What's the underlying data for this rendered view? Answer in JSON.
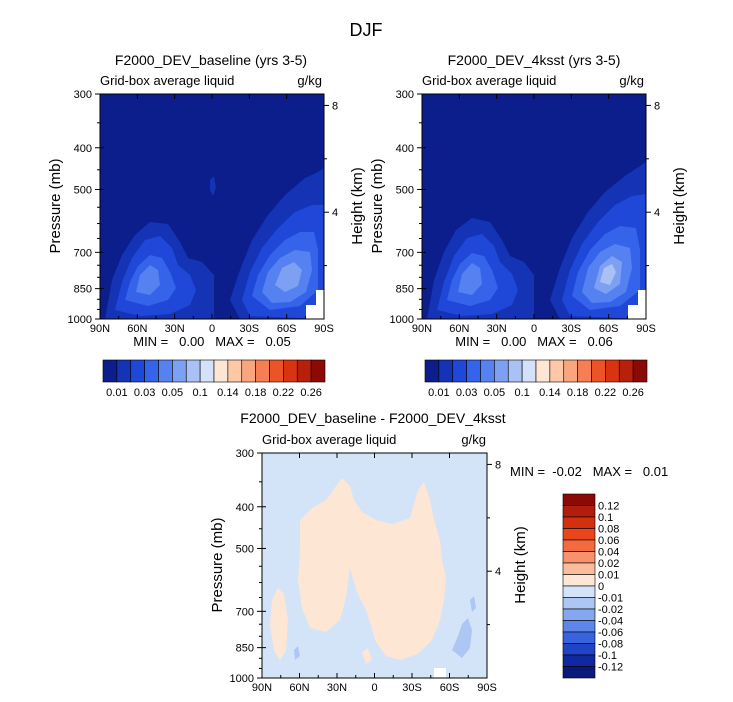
{
  "figure_title": "DJF",
  "chart_data": [
    {
      "type": "heatmap",
      "title": "F2000_DEV_baseline (yrs 3-5)",
      "subtitle_left": "Grid-box average liquid",
      "subtitle_right": "g/kg",
      "xlabel": "",
      "ylabel": "Pressure (mb)",
      "y2label": "Height (km)",
      "x_ticks": [
        "90N",
        "60N",
        "30N",
        "0",
        "30S",
        "60S",
        "90S"
      ],
      "x_tick_values": [
        90,
        60,
        30,
        0,
        -30,
        -60,
        -90
      ],
      "y_ticks": [
        300,
        400,
        500,
        700,
        850,
        1000
      ],
      "y2_ticks": [
        8,
        4
      ],
      "xlim": [
        90,
        -90
      ],
      "ylim": [
        1000,
        300
      ],
      "y_scale": "log-pressure",
      "stats": "MIN =   0.00   MAX =   0.05",
      "min": 0.0,
      "max": 0.05,
      "features": [
        {
          "lat": 60,
          "p": 850,
          "value": 0.03
        },
        {
          "lat": -60,
          "p": 850,
          "value": 0.05
        },
        {
          "lat": -65,
          "p": 650,
          "value": 0.015
        },
        {
          "lat": 0,
          "p": 560,
          "value": 0.01
        }
      ]
    },
    {
      "type": "heatmap",
      "title": "F2000_DEV_4ksst (yrs 3-5)",
      "subtitle_left": "Grid-box average liquid",
      "subtitle_right": "g/kg",
      "xlabel": "",
      "ylabel": "Pressure (mb)",
      "y2label": "Height (km)",
      "x_ticks": [
        "90N",
        "60N",
        "30N",
        "0",
        "30S",
        "60S",
        "90S"
      ],
      "x_tick_values": [
        90,
        60,
        30,
        0,
        -30,
        -60,
        -90
      ],
      "y_ticks": [
        300,
        400,
        500,
        700,
        850,
        1000
      ],
      "y2_ticks": [
        8,
        4
      ],
      "xlim": [
        90,
        -90
      ],
      "ylim": [
        1000,
        300
      ],
      "y_scale": "log-pressure",
      "stats": "MIN =   0.00   MAX =   0.06",
      "min": 0.0,
      "max": 0.06,
      "features": [
        {
          "lat": 60,
          "p": 850,
          "value": 0.03
        },
        {
          "lat": -60,
          "p": 850,
          "value": 0.06
        },
        {
          "lat": -65,
          "p": 640,
          "value": 0.015
        }
      ]
    },
    {
      "type": "heatmap",
      "title": "F2000_DEV_baseline - F2000_DEV_4ksst",
      "subtitle_left": "Grid-box average liquid",
      "subtitle_right": "g/kg",
      "xlabel": "",
      "ylabel": "Pressure (mb)",
      "y2label": "Height (km)",
      "x_ticks": [
        "90N",
        "60N",
        "30N",
        "0",
        "30S",
        "60S",
        "90S"
      ],
      "x_tick_values": [
        90,
        60,
        30,
        0,
        -30,
        -60,
        -90
      ],
      "y_ticks": [
        300,
        400,
        500,
        700,
        850,
        1000
      ],
      "y2_ticks": [
        8,
        4
      ],
      "xlim": [
        90,
        -90
      ],
      "ylim": [
        1000,
        300
      ],
      "y_scale": "log-pressure",
      "stats": "MIN =  -0.02   MAX =   0.01",
      "min": -0.02,
      "max": 0.01,
      "features": [
        {
          "lat_range": [
            -50,
            60
          ],
          "p_range": [
            400,
            870
          ],
          "value": 0.005
        },
        {
          "lat_range": [
            55,
            70
          ],
          "p_range": [
            800,
            960
          ],
          "value": 0.005
        },
        {
          "lat_range": [
            -50,
            -90
          ],
          "p_range": [
            820,
            1000
          ],
          "value": -0.005
        }
      ]
    }
  ],
  "colorbar_abs": {
    "levels": [
      "0.01",
      "0.03",
      "0.05",
      "0.1",
      "0.14",
      "0.18",
      "0.22",
      "0.26"
    ],
    "colors": [
      "#0b1e8c",
      "#1533b5",
      "#1f48d9",
      "#3564ea",
      "#5582f0",
      "#7ea0f2",
      "#a9c1f4",
      "#d3e2f8",
      "#fde6d3",
      "#fdc8a8",
      "#f9a67f",
      "#f57e55",
      "#ec5326",
      "#d93312",
      "#b9200c",
      "#8b0a05"
    ]
  },
  "colorbar_diff": {
    "levels": [
      "0.12",
      "0.1",
      "0.08",
      "0.06",
      "0.04",
      "0.02",
      "0.01",
      "0",
      "-0.01",
      "-0.02",
      "-0.04",
      "-0.06",
      "-0.08",
      "-0.1",
      "-0.12"
    ],
    "colors": [
      "#8b0a05",
      "#b21e0c",
      "#d2300f",
      "#e9461c",
      "#f46a40",
      "#f7926c",
      "#fbbc9d",
      "#fde6d3",
      "#d4e4f8",
      "#adc6f3",
      "#85a6f0",
      "#5c86ea",
      "#3863df",
      "#1f44c7",
      "#1028a0",
      "#0b1a7a"
    ]
  },
  "colors": {
    "background_abs": "#0b1e8c",
    "background_diff": "#d4e4f8"
  }
}
